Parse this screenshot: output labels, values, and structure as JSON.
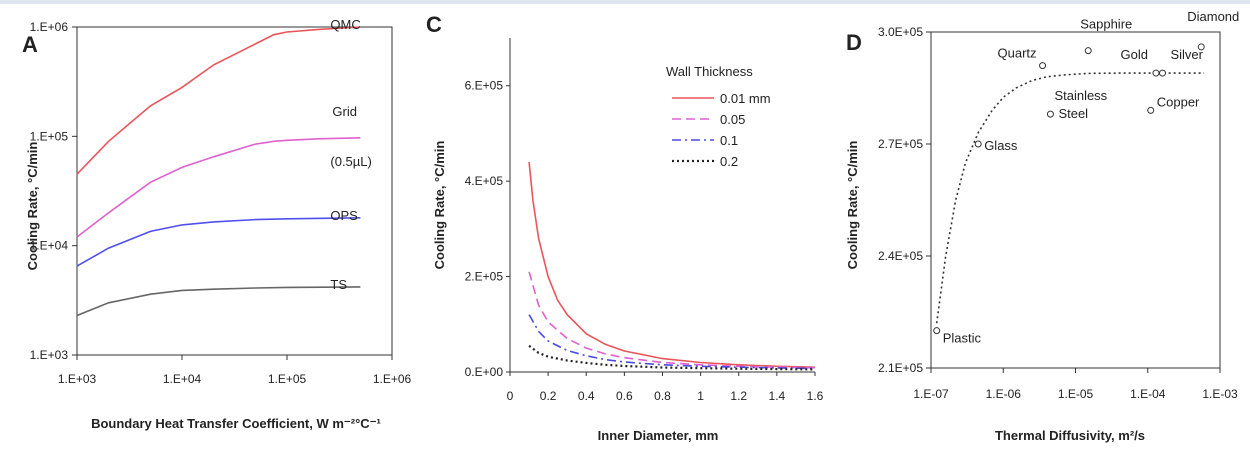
{
  "chart_data": [
    {
      "panel": "A",
      "type": "line",
      "scale": "log-log",
      "xlabel": "Boundary Heat Transfer Coefficient, W m⁻²°C⁻¹",
      "ylabel": "Cooling Rate, °C/min",
      "xlim": [
        1000,
        1000000
      ],
      "ylim": [
        1000,
        1000000
      ],
      "xticks": [
        "1.E+03",
        "1.E+04",
        "1.E+05",
        "1.E+06"
      ],
      "yticks": [
        "1.E+03",
        "1.E+04",
        "1.E+05",
        "1.E+06"
      ],
      "grid": false,
      "series": [
        {
          "name": "QMC",
          "color": "#e8555a",
          "x": [
            1000,
            2000,
            5000,
            10000,
            20000,
            50000,
            75000,
            100000,
            200000,
            500000
          ],
          "y": [
            45000,
            90000,
            190000,
            280000,
            450000,
            700000,
            850000,
            900000,
            950000,
            1000000
          ]
        },
        {
          "name": "Grid",
          "name2": "(0.5µL)",
          "color": "#e060d0",
          "x": [
            1000,
            2000,
            5000,
            10000,
            20000,
            50000,
            75000,
            100000,
            200000,
            500000
          ],
          "y": [
            12000,
            20000,
            38000,
            52000,
            65000,
            85000,
            90000,
            92000,
            95000,
            97000
          ]
        },
        {
          "name": "OPS",
          "color": "#5050ee",
          "x": [
            1000,
            2000,
            5000,
            10000,
            20000,
            50000,
            100000,
            500000
          ],
          "y": [
            6500,
            9500,
            13500,
            15500,
            16500,
            17300,
            17600,
            18000
          ]
        },
        {
          "name": "TS",
          "color": "#666666",
          "x": [
            1000,
            2000,
            5000,
            10000,
            20000,
            50000,
            100000,
            500000
          ],
          "y": [
            2300,
            3000,
            3600,
            3900,
            4000,
            4100,
            4150,
            4200
          ]
        }
      ]
    },
    {
      "panel": "C",
      "type": "line",
      "xlabel": "Inner Diameter, mm",
      "ylabel": "Cooling Rate, °C/min",
      "xlim": [
        0,
        1.6
      ],
      "ylim": [
        0,
        700000
      ],
      "xticks": [
        "0",
        "0.2",
        "0.4",
        "0.6",
        "0.8",
        "1",
        "1.2",
        "1.4",
        "1.6"
      ],
      "yticks": [
        "0.E+00",
        "2.E+05",
        "4.E+05",
        "6.E+05"
      ],
      "grid": false,
      "legend_title": "Wall Thickness",
      "legend_position": "top-right",
      "series": [
        {
          "name": "0.01 mm",
          "color": "#e8555a",
          "dash": "solid",
          "x": [
            0.1,
            0.12,
            0.15,
            0.2,
            0.25,
            0.3,
            0.4,
            0.5,
            0.6,
            0.8,
            1.0,
            1.2,
            1.4,
            1.6
          ],
          "y": [
            440000,
            360000,
            280000,
            200000,
            150000,
            120000,
            80000,
            58000,
            44000,
            28000,
            20000,
            15000,
            12000,
            10000
          ]
        },
        {
          "name": "0.05",
          "color": "#e060d0",
          "dash": "dashed",
          "x": [
            0.1,
            0.15,
            0.2,
            0.3,
            0.4,
            0.5,
            0.6,
            0.8,
            1.0,
            1.2,
            1.4,
            1.6
          ],
          "y": [
            210000,
            140000,
            105000,
            70000,
            50000,
            38000,
            30000,
            20000,
            15000,
            12000,
            10000,
            9000
          ]
        },
        {
          "name": "0.1",
          "color": "#4a4ae0",
          "dash": "dashdot",
          "x": [
            0.1,
            0.15,
            0.2,
            0.3,
            0.4,
            0.5,
            0.6,
            0.8,
            1.0,
            1.2,
            1.4,
            1.6
          ],
          "y": [
            120000,
            85000,
            65000,
            45000,
            34000,
            26000,
            21000,
            15000,
            12000,
            10000,
            8500,
            7500
          ]
        },
        {
          "name": "0.2",
          "color": "#222222",
          "dash": "dotted",
          "x": [
            0.1,
            0.15,
            0.2,
            0.3,
            0.4,
            0.5,
            0.6,
            0.8,
            1.0,
            1.2,
            1.4,
            1.6
          ],
          "y": [
            55000,
            40000,
            32000,
            24000,
            19000,
            15000,
            12500,
            9500,
            8000,
            7000,
            6000,
            5500
          ]
        }
      ]
    },
    {
      "panel": "D",
      "type": "scatter",
      "scale": "log-x",
      "xlabel": "Thermal Diffusivity, m²/s",
      "ylabel": "Cooling Rate, °C/min",
      "xlim": [
        1e-07,
        0.001
      ],
      "ylim": [
        210000,
        300000
      ],
      "xticks": [
        "1.E-07",
        "1.E-06",
        "1.E-05",
        "1.E-04",
        "1.E-03"
      ],
      "yticks": [
        "2.1E+05",
        "2.4E+05",
        "2.7E+05",
        "3.0E+05"
      ],
      "grid": false,
      "points": [
        {
          "name": "Plastic",
          "x": 1.2e-07,
          "y": 220000
        },
        {
          "name": "Glass",
          "x": 4.5e-07,
          "y": 270000
        },
        {
          "name": "Quartz",
          "x": 3.5e-06,
          "y": 291000
        },
        {
          "name": "Stainless",
          "name2": "Steel",
          "x": 4.5e-06,
          "y": 278000
        },
        {
          "name": "Sapphire",
          "x": 1.5e-05,
          "y": 295000
        },
        {
          "name": "Copper",
          "x": 0.00011,
          "y": 279000
        },
        {
          "name": "Gold",
          "x": 0.00013,
          "y": 289000
        },
        {
          "name": "Silver",
          "x": 0.00016,
          "y": 289000
        },
        {
          "name": "Diamond",
          "x": 0.00055,
          "y": 296000
        }
      ],
      "fit": {
        "style": "dotted",
        "x": [
          1.2e-07,
          1.6e-07,
          2.2e-07,
          3e-07,
          4.5e-07,
          7e-07,
          1e-06,
          1.5e-06,
          2.5e-06,
          4e-06,
          7e-06,
          1.5e-05,
          4e-05,
          0.0001,
          0.0003,
          0.0006
        ],
        "y": [
          222000,
          240000,
          255000,
          265000,
          273000,
          279000,
          282500,
          285000,
          287000,
          288000,
          288500,
          288900,
          289000,
          289000,
          289000,
          289000
        ]
      }
    }
  ]
}
